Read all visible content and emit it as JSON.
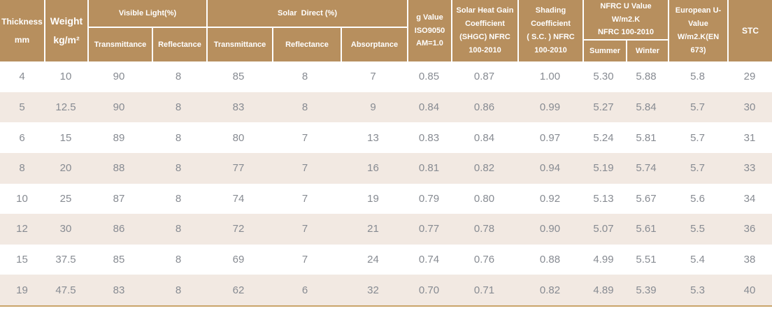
{
  "chart_data": {
    "type": "table",
    "header": {
      "thickness": "Thickness\nmm",
      "weight": "Weight\nkg/m²",
      "visible_light_group": "Visible Light(%)",
      "vl_transmittance": "Transmittance",
      "vl_reflectance": "Reflectance",
      "solar_direct_group": "Solar  Direct (%)",
      "sd_transmittance": "Transmittance",
      "sd_reflectance": "Reflectance",
      "sd_absorptance": "Absorptance",
      "g_value": "g Value\nISO9050\nAM=1.0",
      "shgc": "Solar Heat Gain\nCoefficient\n(SHGC) NFRC\n100-2010",
      "shading": "Shading\nCoefficient\n( S.C. ) NFRC\n100-2010",
      "nfrc_u_group": "NFRC U Value\nW/m2.K\nNFRC 100-2010",
      "summer": "Summer",
      "winter": "Winter",
      "european_u": "European U-\nValue\nW/m2.K(EN\n673)",
      "stc": "STC"
    },
    "column_keys": [
      "thickness",
      "weight",
      "vl-transmittance",
      "vl-reflectance",
      "sd-transmittance",
      "sd-reflectance",
      "sd-absorptance",
      "g-value",
      "shgc",
      "shading-coefficient",
      "u-summer",
      "u-winter",
      "european-u",
      "stc"
    ],
    "columns": [
      "Thickness mm",
      "Weight kg/m²",
      "Visible Light(%) Transmittance",
      "Visible Light(%) Reflectance",
      "Solar Direct(%) Transmittance",
      "Solar Direct(%) Reflectance",
      "Solar Direct(%) Absorptance",
      "g Value ISO9050 AM=1.0",
      "Solar Heat Gain Coefficient (SHGC) NFRC 100-2010",
      "Shading Coefficient ( S.C. ) NFRC 100-2010",
      "NFRC U Value W/m2.K Summer",
      "NFRC U Value W/m2.K Winter",
      "European U-Value W/m2.K(EN 673)",
      "STC"
    ],
    "rows": [
      [
        "4",
        "10",
        "90",
        "8",
        "85",
        "8",
        "7",
        "0.85",
        "0.87",
        "1.00",
        "5.30",
        "5.88",
        "5.8",
        "29"
      ],
      [
        "5",
        "12.5",
        "90",
        "8",
        "83",
        "8",
        "9",
        "0.84",
        "0.86",
        "0.99",
        "5.27",
        "5.84",
        "5.7",
        "30"
      ],
      [
        "6",
        "15",
        "89",
        "8",
        "80",
        "7",
        "13",
        "0.83",
        "0.84",
        "0.97",
        "5.24",
        "5.81",
        "5.7",
        "31"
      ],
      [
        "8",
        "20",
        "88",
        "8",
        "77",
        "7",
        "16",
        "0.81",
        "0.82",
        "0.94",
        "5.19",
        "5.74",
        "5.7",
        "33"
      ],
      [
        "10",
        "25",
        "87",
        "8",
        "74",
        "7",
        "19",
        "0.79",
        "0.80",
        "0.92",
        "5.13",
        "5.67",
        "5.6",
        "34"
      ],
      [
        "12",
        "30",
        "86",
        "8",
        "72",
        "7",
        "21",
        "0.77",
        "0.78",
        "0.90",
        "5.07",
        "5.61",
        "5.5",
        "36"
      ],
      [
        "15",
        "37.5",
        "85",
        "8",
        "69",
        "7",
        "24",
        "0.74",
        "0.76",
        "0.88",
        "4.99",
        "5.51",
        "5.4",
        "38"
      ],
      [
        "19",
        "47.5",
        "83",
        "8",
        "62",
        "6",
        "32",
        "0.70",
        "0.71",
        "0.82",
        "4.89",
        "5.39",
        "5.3",
        "40"
      ]
    ]
  },
  "colors": {
    "header_bg": "#b78f5e",
    "header_text": "#ffffff",
    "divider": "#ffffff",
    "row_bg": "#ffffff",
    "row_alt_bg": "#f2e9e2",
    "data_text": "#878b92",
    "bottom_border": "#c9a469",
    "page_bg": "#ffffff"
  }
}
